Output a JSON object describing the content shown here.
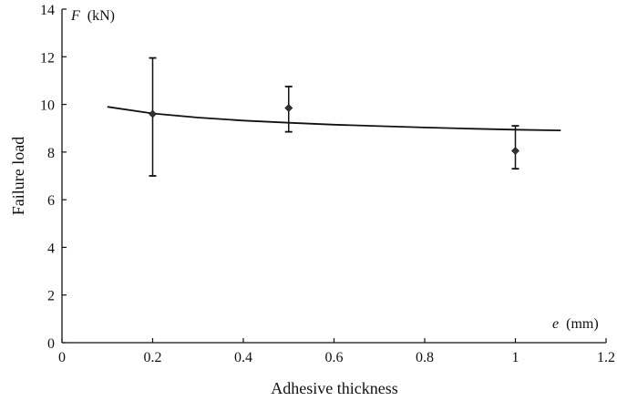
{
  "chart_data": {
    "type": "scatter",
    "title": "",
    "xlabel": "Adhesive thickness",
    "ylabel": "Failure load",
    "x_unit_symbol": "e",
    "x_unit": "(mm)",
    "y_unit_symbol": "F",
    "y_unit": "(kN)",
    "xlim": [
      0,
      1.2
    ],
    "ylim": [
      0,
      14
    ],
    "x_ticks": [
      0,
      0.2,
      0.4,
      0.6,
      0.8,
      1,
      1.2
    ],
    "x_tick_labels": [
      "0",
      "0.2",
      "0.4",
      "0.6",
      "0.8",
      "1",
      "1.2"
    ],
    "y_ticks": [
      0,
      2,
      4,
      6,
      8,
      10,
      12,
      14
    ],
    "y_tick_labels": [
      "0",
      "2",
      "4",
      "6",
      "8",
      "10",
      "12",
      "14"
    ],
    "grid": false,
    "series": [
      {
        "type": "scatter-errorbar",
        "x": [
          0.2,
          0.5,
          1.0
        ],
        "y": [
          9.6,
          9.85,
          8.05
        ],
        "y_low": [
          7.0,
          8.85,
          7.3
        ],
        "y_high": [
          11.95,
          10.75,
          9.1
        ]
      },
      {
        "type": "line",
        "x": [
          0.1,
          0.2,
          0.3,
          0.4,
          0.5,
          0.6,
          0.7,
          0.8,
          0.9,
          1.0,
          1.1
        ],
        "y": [
          9.9,
          9.62,
          9.45,
          9.32,
          9.23,
          9.15,
          9.09,
          9.03,
          8.98,
          8.94,
          8.91
        ]
      }
    ]
  }
}
